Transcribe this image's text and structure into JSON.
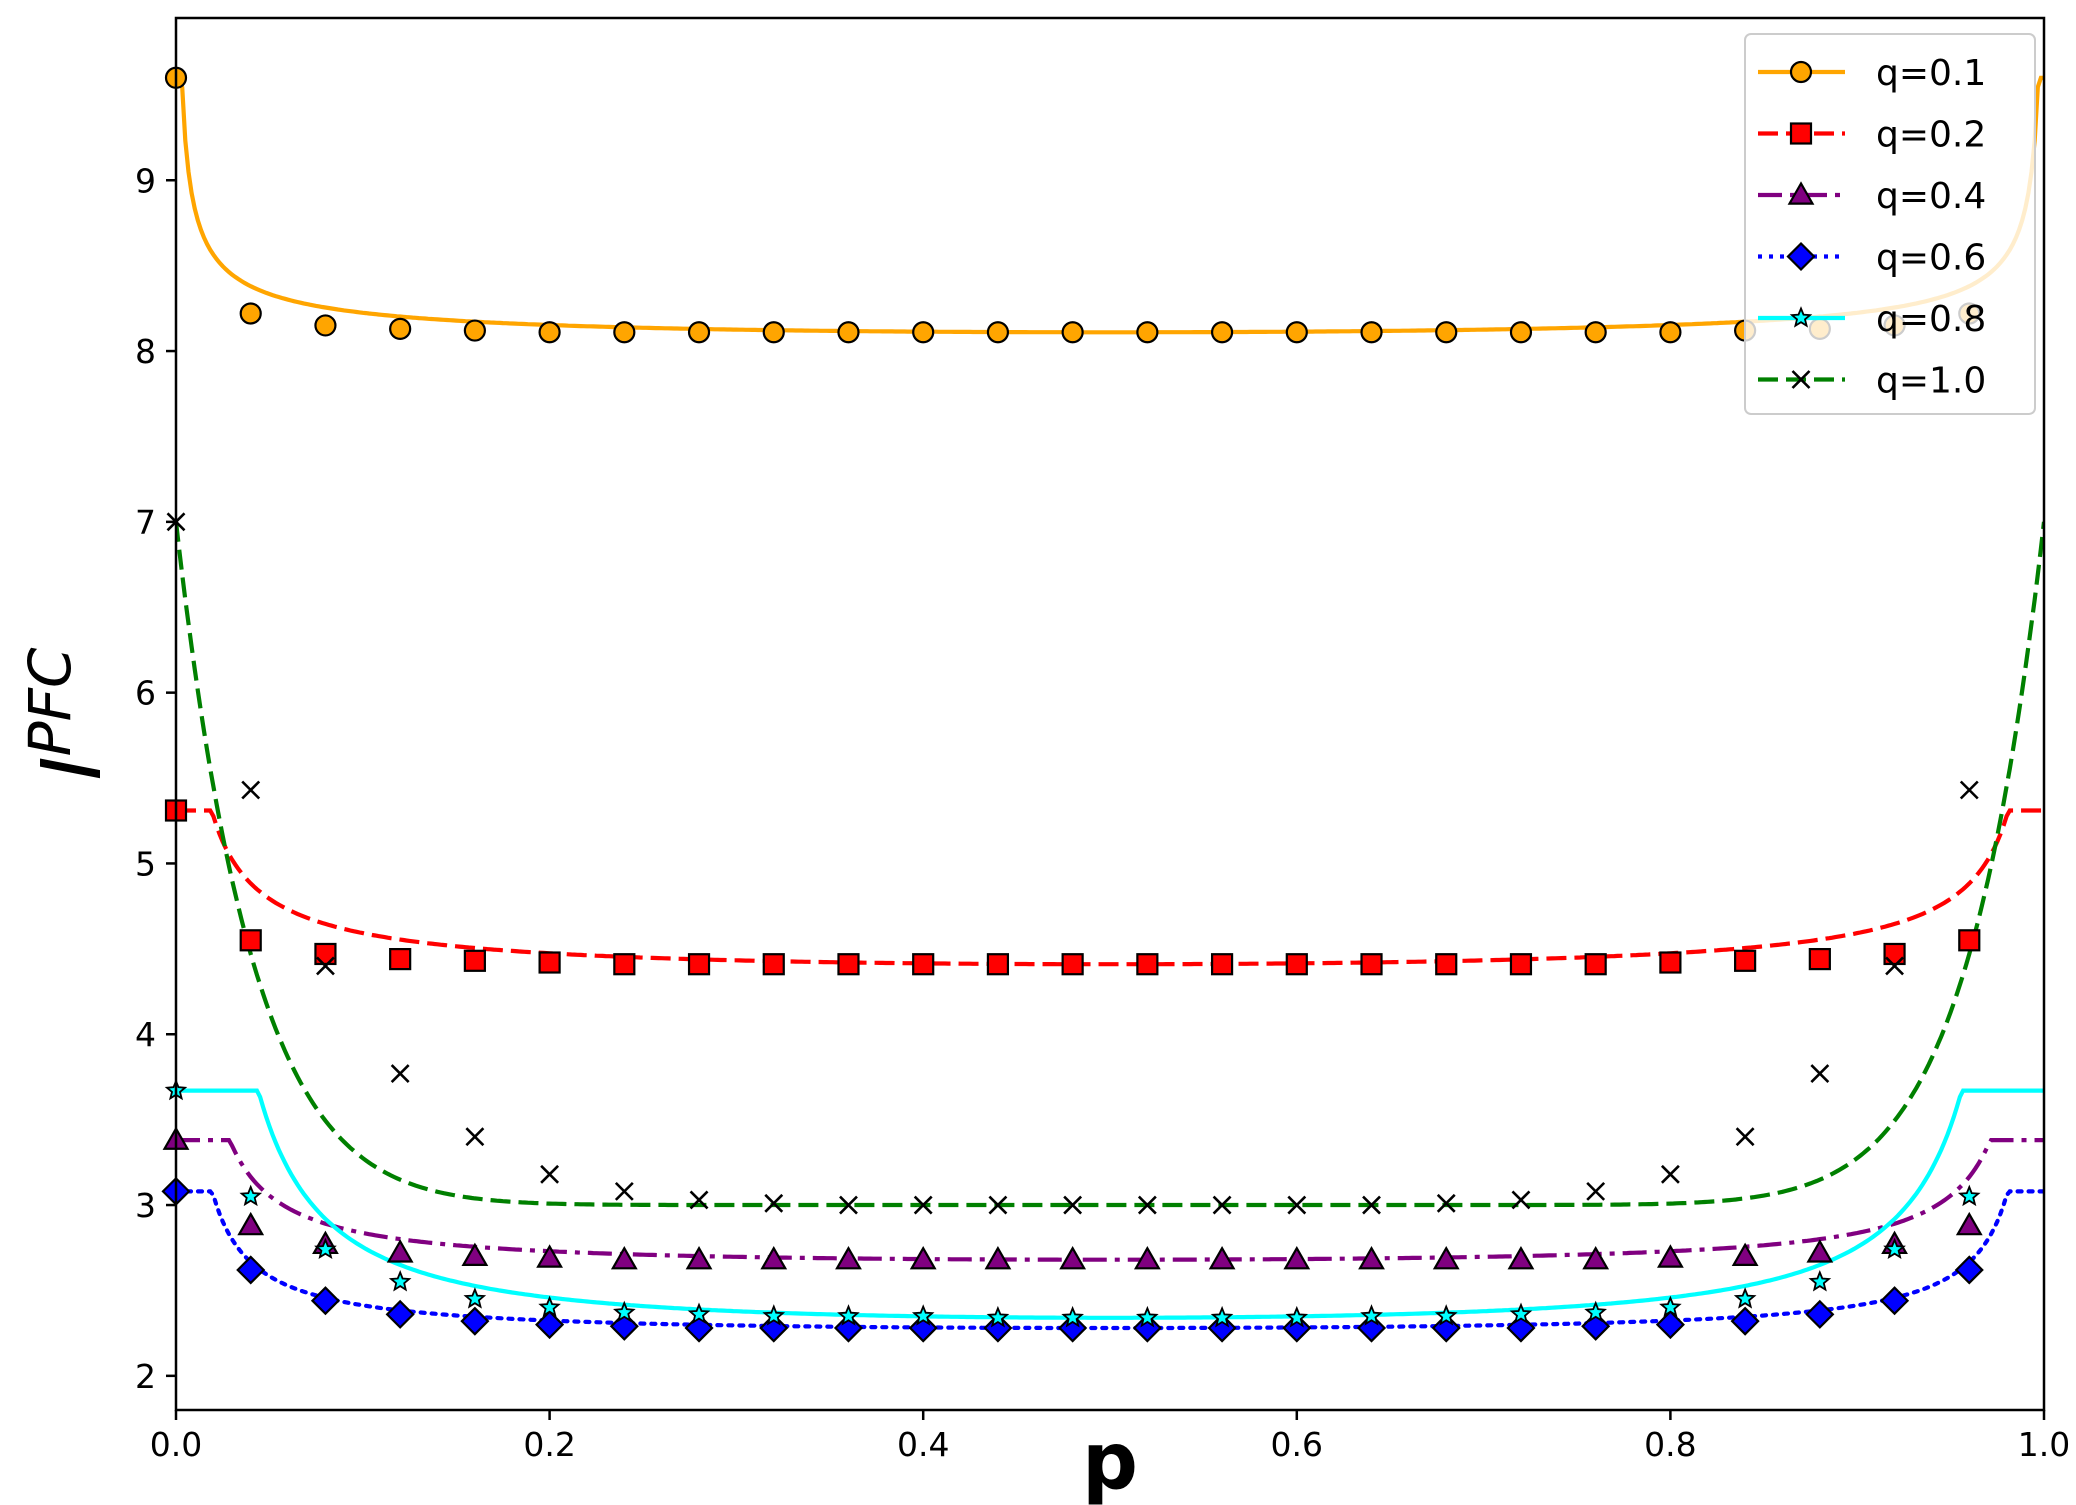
{
  "chart_data": {
    "type": "line",
    "xlabel": "p",
    "ylabel": {
      "main": "I",
      "sup": "PFC"
    },
    "xlim": [
      0.0,
      1.0
    ],
    "ylim": [
      1.8,
      9.95
    ],
    "xticks": [
      0.0,
      0.2,
      0.4,
      0.6,
      0.8,
      1.0
    ],
    "xtick_labels": [
      "0.0",
      "0.2",
      "0.4",
      "0.6",
      "0.8",
      "1.0"
    ],
    "yticks": [
      2,
      3,
      4,
      5,
      6,
      7,
      8,
      9
    ],
    "ytick_labels": [
      "2",
      "3",
      "4",
      "5",
      "6",
      "7",
      "8",
      "9"
    ],
    "grid": false,
    "legend_position": "top-right",
    "marker_x": [
      0.0,
      0.04,
      0.08,
      0.12,
      0.16,
      0.2,
      0.24,
      0.28,
      0.32,
      0.36,
      0.4,
      0.44,
      0.48,
      0.52,
      0.56,
      0.6,
      0.64,
      0.68,
      0.72,
      0.76,
      0.8,
      0.84,
      0.88,
      0.92,
      0.96
    ],
    "series": [
      {
        "name": "q=0.1",
        "color": "#FFA500",
        "dash": "solid",
        "marker": "circle",
        "marker_face": "#FFA500",
        "curve": {
          "min": 8.11,
          "k": 0.068,
          "p": 0.55
        },
        "values": [
          9.6,
          8.22,
          8.15,
          8.13,
          8.12,
          8.11,
          8.11,
          8.11,
          8.11,
          8.11,
          8.11,
          8.11,
          8.11,
          8.11,
          8.11,
          8.11,
          8.11,
          8.11,
          8.11,
          8.11,
          8.11,
          8.12,
          8.13,
          8.15,
          8.22
        ]
      },
      {
        "name": "q=0.2",
        "color": "#FF0000",
        "dash": "dashed",
        "marker": "square",
        "marker_face": "#FF0000",
        "curve": {
          "min": 4.41,
          "k": 0.06,
          "p": 0.72
        },
        "values": [
          5.31,
          4.55,
          4.47,
          4.44,
          4.43,
          4.42,
          4.41,
          4.41,
          4.41,
          4.41,
          4.41,
          4.41,
          4.41,
          4.41,
          4.41,
          4.41,
          4.41,
          4.41,
          4.41,
          4.41,
          4.42,
          4.43,
          4.44,
          4.47,
          4.55
        ]
      },
      {
        "name": "q=0.4",
        "color": "#800080",
        "dash": "dashdot",
        "marker": "triangle",
        "marker_face": "#800080",
        "curve": {
          "min": 2.68,
          "k": 0.022,
          "p": 1.0
        },
        "values": [
          3.38,
          2.88,
          2.77,
          2.72,
          2.7,
          2.69,
          2.68,
          2.68,
          2.68,
          2.68,
          2.68,
          2.68,
          2.68,
          2.68,
          2.68,
          2.68,
          2.68,
          2.68,
          2.68,
          2.68,
          2.69,
          2.7,
          2.72,
          2.77,
          2.88
        ]
      },
      {
        "name": "q=0.6",
        "color": "#0000FF",
        "dash": "dotted",
        "marker": "diamond",
        "marker_face": "#0000FF",
        "curve": {
          "min": 2.28,
          "k": 0.025,
          "p": 0.9
        },
        "values": [
          3.08,
          2.62,
          2.44,
          2.36,
          2.32,
          2.3,
          2.29,
          2.28,
          2.28,
          2.28,
          2.28,
          2.28,
          2.28,
          2.28,
          2.28,
          2.28,
          2.28,
          2.28,
          2.28,
          2.29,
          2.3,
          2.32,
          2.36,
          2.44,
          2.62
        ]
      },
      {
        "name": "q=0.8",
        "color": "#00FFFF",
        "dash": "solid",
        "marker": "star",
        "marker_face": "#00FFFF",
        "curve": {
          "min": 2.34,
          "k": 0.03,
          "p": 1.24
        },
        "values": [
          3.67,
          3.05,
          2.74,
          2.55,
          2.45,
          2.4,
          2.37,
          2.36,
          2.35,
          2.35,
          2.35,
          2.34,
          2.34,
          2.34,
          2.34,
          2.34,
          2.35,
          2.35,
          2.36,
          2.37,
          2.4,
          2.45,
          2.55,
          2.74,
          3.05
        ]
      },
      {
        "name": "q=1.0",
        "color": "#008000",
        "dash": "dashed",
        "marker": "x",
        "marker_face": "#000000",
        "curve": {
          "min": 3.0,
          "k": 4.0,
          "p": 12
        },
        "values": [
          7.0,
          5.43,
          4.4,
          3.77,
          3.4,
          3.18,
          3.08,
          3.03,
          3.01,
          3.0,
          3.0,
          3.0,
          3.0,
          3.0,
          3.0,
          3.0,
          3.0,
          3.01,
          3.03,
          3.08,
          3.18,
          3.4,
          3.77,
          4.4,
          5.43
        ]
      }
    ]
  }
}
